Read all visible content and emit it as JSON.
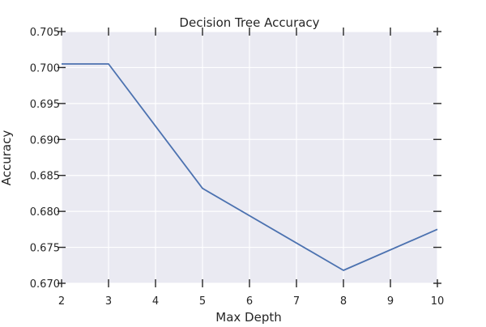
{
  "chart_data": {
    "type": "line",
    "title": "Decision Tree Accuracy",
    "xlabel": "Max Depth",
    "ylabel": "Accuracy",
    "xlim": [
      2,
      10
    ],
    "ylim": [
      0.67,
      0.705
    ],
    "xticks": [
      2,
      3,
      4,
      5,
      6,
      7,
      8,
      9,
      10
    ],
    "xtick_labels": [
      "2",
      "3",
      "4",
      "5",
      "6",
      "7",
      "8",
      "9",
      "10"
    ],
    "yticks": [
      0.67,
      0.675,
      0.68,
      0.685,
      0.69,
      0.695,
      0.7,
      0.705
    ],
    "ytick_labels": [
      "0.670",
      "0.675",
      "0.680",
      "0.685",
      "0.690",
      "0.695",
      "0.700",
      "0.705"
    ],
    "grid": true,
    "series": [
      {
        "x": [
          2,
          3,
          5,
          8,
          10
        ],
        "y": [
          0.7005,
          0.7005,
          0.6832,
          0.6718,
          0.6775
        ],
        "color": "#4c72b0"
      }
    ],
    "colors": {
      "plot_background": "#eaeaf2",
      "grid": "#ffffff",
      "text": "#262626",
      "ticks": "#262626"
    }
  }
}
